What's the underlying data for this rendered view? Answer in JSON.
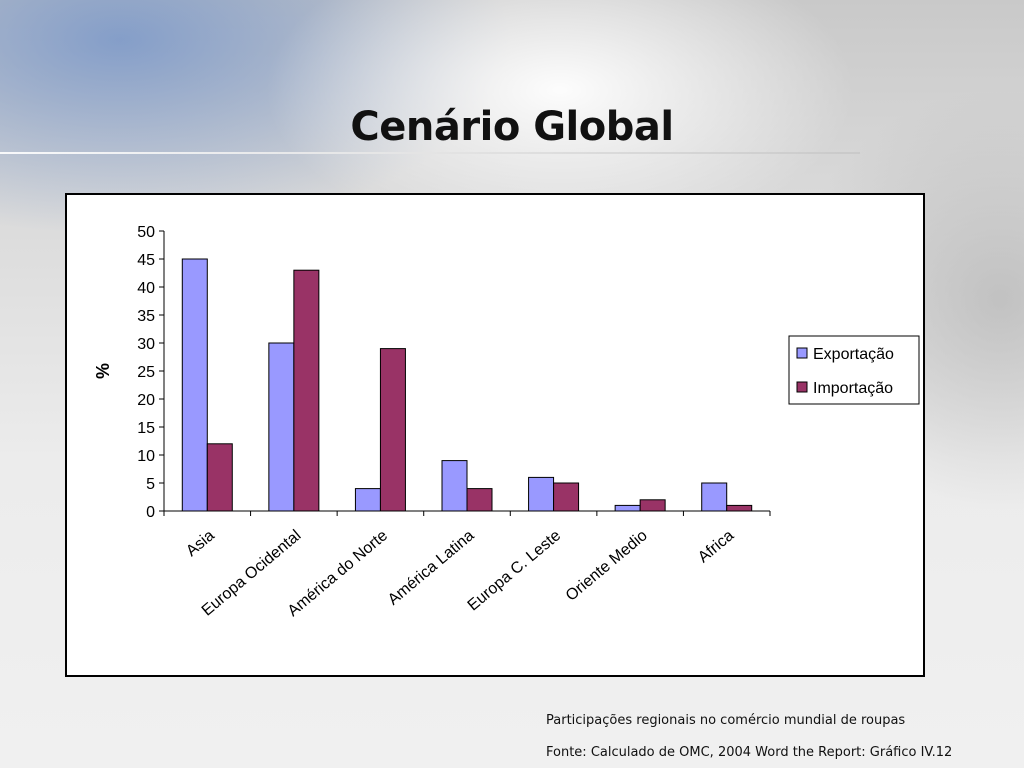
{
  "slide": {
    "title": "Cenário Global",
    "caption_line1": "Participações regionais no comércio mundial de roupas",
    "caption_line2": "Fonte: Calculado de OMC, 2004 Word the Report: Gráfico IV.12"
  },
  "chart_data": {
    "type": "bar",
    "title": "",
    "xlabel": "",
    "ylabel": "%",
    "ylim": [
      0,
      50
    ],
    "yticks": [
      0,
      5,
      10,
      15,
      20,
      25,
      30,
      35,
      40,
      45,
      50
    ],
    "categories": [
      "Asia",
      "Europa Ocidental",
      "América do Norte",
      "América Latina",
      "Europa C. Leste",
      "Oriente Medio",
      "Africa"
    ],
    "series": [
      {
        "name": "Exportação",
        "values": [
          45,
          30,
          4,
          9,
          6,
          1,
          5
        ],
        "color": "#9999ff"
      },
      {
        "name": "Importação",
        "values": [
          12,
          43,
          29,
          4,
          5,
          2,
          1
        ],
        "color": "#993366"
      }
    ],
    "legend_position": "right",
    "grid": false
  }
}
